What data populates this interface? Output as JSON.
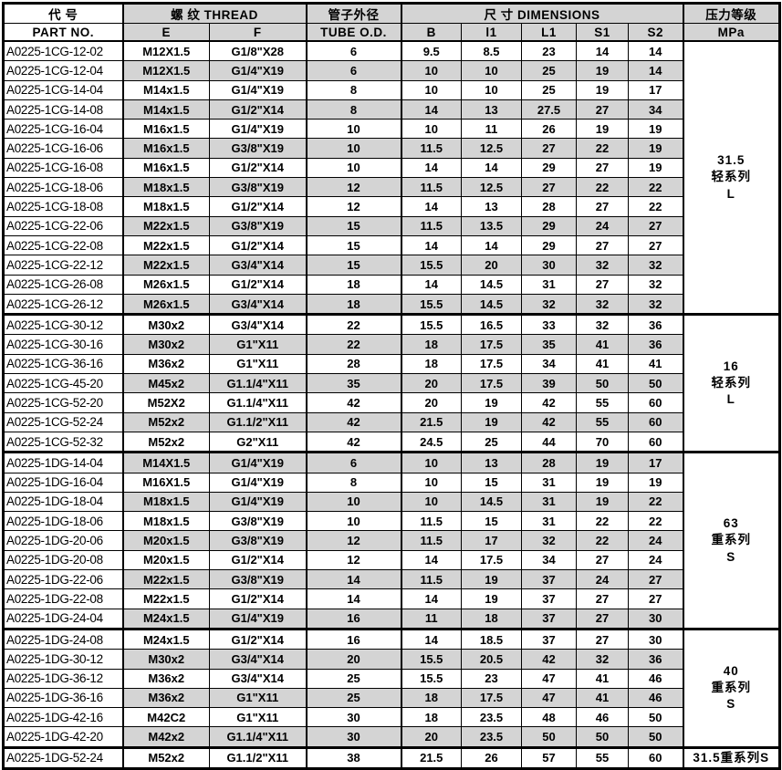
{
  "header": {
    "part_no_zh": "代    号",
    "part_no_en": "PART  NO.",
    "thread_label": "螺 纹  THREAD",
    "thread_e": "E",
    "thread_f": "F",
    "tube_od_zh": "管子外径",
    "tube_od_en": "TUBE O.D.",
    "dimensions_label": "尺 寸  DIMENSIONS",
    "dim_b": "B",
    "dim_l1_small": "l1",
    "dim_l1_cap": "L1",
    "dim_s1": "S1",
    "dim_s2": "S2",
    "pressure_zh": "压力等级",
    "pressure_en": "MPa"
  },
  "colors": {
    "stripe_gray": "#d4d4d4",
    "border_black": "#000000",
    "background_white": "#ffffff"
  },
  "groups": [
    {
      "pressure": [
        "31.5",
        "轻系列",
        "L"
      ],
      "rows": [
        [
          "A0225-1CG-12-02",
          "M12X1.5",
          "G1/8\"X28",
          "6",
          "9.5",
          "8.5",
          "23",
          "14",
          "14"
        ],
        [
          "A0225-1CG-12-04",
          "M12X1.5",
          "G1/4\"X19",
          "6",
          "10",
          "10",
          "25",
          "19",
          "14"
        ],
        [
          "A0225-1CG-14-04",
          "M14x1.5",
          "G1/4\"X19",
          "8",
          "10",
          "10",
          "25",
          "19",
          "17"
        ],
        [
          "A0225-1CG-14-08",
          "M14x1.5",
          "G1/2\"X14",
          "8",
          "14",
          "13",
          "27.5",
          "27",
          "34"
        ],
        [
          "A0225-1CG-16-04",
          "M16x1.5",
          "G1/4\"X19",
          "10",
          "10",
          "11",
          "26",
          "19",
          "19"
        ],
        [
          "A0225-1CG-16-06",
          "M16x1.5",
          "G3/8\"X19",
          "10",
          "11.5",
          "12.5",
          "27",
          "22",
          "19"
        ],
        [
          "A0225-1CG-16-08",
          "M16x1.5",
          "G1/2\"X14",
          "10",
          "14",
          "14",
          "29",
          "27",
          "19"
        ],
        [
          "A0225-1CG-18-06",
          "M18x1.5",
          "G3/8\"X19",
          "12",
          "11.5",
          "12.5",
          "27",
          "22",
          "22"
        ],
        [
          "A0225-1CG-18-08",
          "M18x1.5",
          "G1/2\"X14",
          "12",
          "14",
          "13",
          "28",
          "27",
          "22"
        ],
        [
          "A0225-1CG-22-06",
          "M22x1.5",
          "G3/8\"X19",
          "15",
          "11.5",
          "13.5",
          "29",
          "24",
          "27"
        ],
        [
          "A0225-1CG-22-08",
          "M22x1.5",
          "G1/2\"X14",
          "15",
          "14",
          "14",
          "29",
          "27",
          "27"
        ],
        [
          "A0225-1CG-22-12",
          "M22x1.5",
          "G3/4\"X14",
          "15",
          "15.5",
          "20",
          "30",
          "32",
          "32"
        ],
        [
          "A0225-1CG-26-08",
          "M26x1.5",
          "G1/2\"X14",
          "18",
          "14",
          "14.5",
          "31",
          "27",
          "32"
        ],
        [
          "A0225-1CG-26-12",
          "M26x1.5",
          "G3/4\"X14",
          "18",
          "15.5",
          "14.5",
          "32",
          "32",
          "32"
        ]
      ]
    },
    {
      "pressure": [
        "16",
        "轻系列",
        "L"
      ],
      "rows": [
        [
          "A0225-1CG-30-12",
          "M30x2",
          "G3/4\"X14",
          "22",
          "15.5",
          "16.5",
          "33",
          "32",
          "36"
        ],
        [
          "A0225-1CG-30-16",
          "M30x2",
          "G1\"X11",
          "22",
          "18",
          "17.5",
          "35",
          "41",
          "36"
        ],
        [
          "A0225-1CG-36-16",
          "M36x2",
          "G1\"X11",
          "28",
          "18",
          "17.5",
          "34",
          "41",
          "41"
        ],
        [
          "A0225-1CG-45-20",
          "M45x2",
          "G1.1/4\"X11",
          "35",
          "20",
          "17.5",
          "39",
          "50",
          "50"
        ],
        [
          "A0225-1CG-52-20",
          "M52X2",
          "G1.1/4\"X11",
          "42",
          "20",
          "19",
          "42",
          "55",
          "60"
        ],
        [
          "A0225-1CG-52-24",
          "M52x2",
          "G1.1/2\"X11",
          "42",
          "21.5",
          "19",
          "42",
          "55",
          "60"
        ],
        [
          "A0225-1CG-52-32",
          "M52x2",
          "G2\"X11",
          "42",
          "24.5",
          "25",
          "44",
          "70",
          "60"
        ]
      ]
    },
    {
      "pressure": [
        "63",
        "重系列",
        "S"
      ],
      "rows": [
        [
          "A0225-1DG-14-04",
          "M14X1.5",
          "G1/4\"X19",
          "6",
          "10",
          "13",
          "28",
          "19",
          "17"
        ],
        [
          "A0225-1DG-16-04",
          "M16X1.5",
          "G1/4\"X19",
          "8",
          "10",
          "15",
          "31",
          "19",
          "19"
        ],
        [
          "A0225-1DG-18-04",
          "M18x1.5",
          "G1/4\"X19",
          "10",
          "10",
          "14.5",
          "31",
          "19",
          "22"
        ],
        [
          "A0225-1DG-18-06",
          "M18x1.5",
          "G3/8\"X19",
          "10",
          "11.5",
          "15",
          "31",
          "22",
          "22"
        ],
        [
          "A0225-1DG-20-06",
          "M20x1.5",
          "G3/8\"X19",
          "12",
          "11.5",
          "17",
          "32",
          "22",
          "24"
        ],
        [
          "A0225-1DG-20-08",
          "M20x1.5",
          "G1/2\"X14",
          "12",
          "14",
          "17.5",
          "34",
          "27",
          "24"
        ],
        [
          "A0225-1DG-22-06",
          "M22x1.5",
          "G3/8\"X19",
          "14",
          "11.5",
          "19",
          "37",
          "24",
          "27"
        ],
        [
          "A0225-1DG-22-08",
          "M22x1.5",
          "G1/2\"X14",
          "14",
          "14",
          "19",
          "37",
          "27",
          "27"
        ],
        [
          "A0225-1DG-24-04",
          "M24x1.5",
          "G1/4\"X19",
          "16",
          "11",
          "18",
          "37",
          "27",
          "30"
        ]
      ]
    },
    {
      "pressure": [
        "40",
        "重系列",
        "S"
      ],
      "rows": [
        [
          "A0225-1DG-24-08",
          "M24x1.5",
          "G1/2\"X14",
          "16",
          "14",
          "18.5",
          "37",
          "27",
          "30"
        ],
        [
          "A0225-1DG-30-12",
          "M30x2",
          "G3/4\"X14",
          "20",
          "15.5",
          "20.5",
          "42",
          "32",
          "36"
        ],
        [
          "A0225-1DG-36-12",
          "M36x2",
          "G3/4\"X14",
          "25",
          "15.5",
          "23",
          "47",
          "41",
          "46"
        ],
        [
          "A0225-1DG-36-16",
          "M36x2",
          "G1\"X11",
          "25",
          "18",
          "17.5",
          "47",
          "41",
          "46"
        ],
        [
          "A0225-1DG-42-16",
          "M42C2",
          "G1\"X11",
          "30",
          "18",
          "23.5",
          "48",
          "46",
          "50"
        ],
        [
          "A0225-1DG-42-20",
          "M42x2",
          "G1.1/4\"X11",
          "30",
          "20",
          "23.5",
          "50",
          "50",
          "50"
        ]
      ]
    },
    {
      "pressure": [
        "31.5重系列S"
      ],
      "rows": [
        [
          "A0225-1DG-52-24",
          "M52x2",
          "G1.1/2\"X11",
          "38",
          "21.5",
          "26",
          "57",
          "55",
          "60"
        ]
      ]
    }
  ]
}
